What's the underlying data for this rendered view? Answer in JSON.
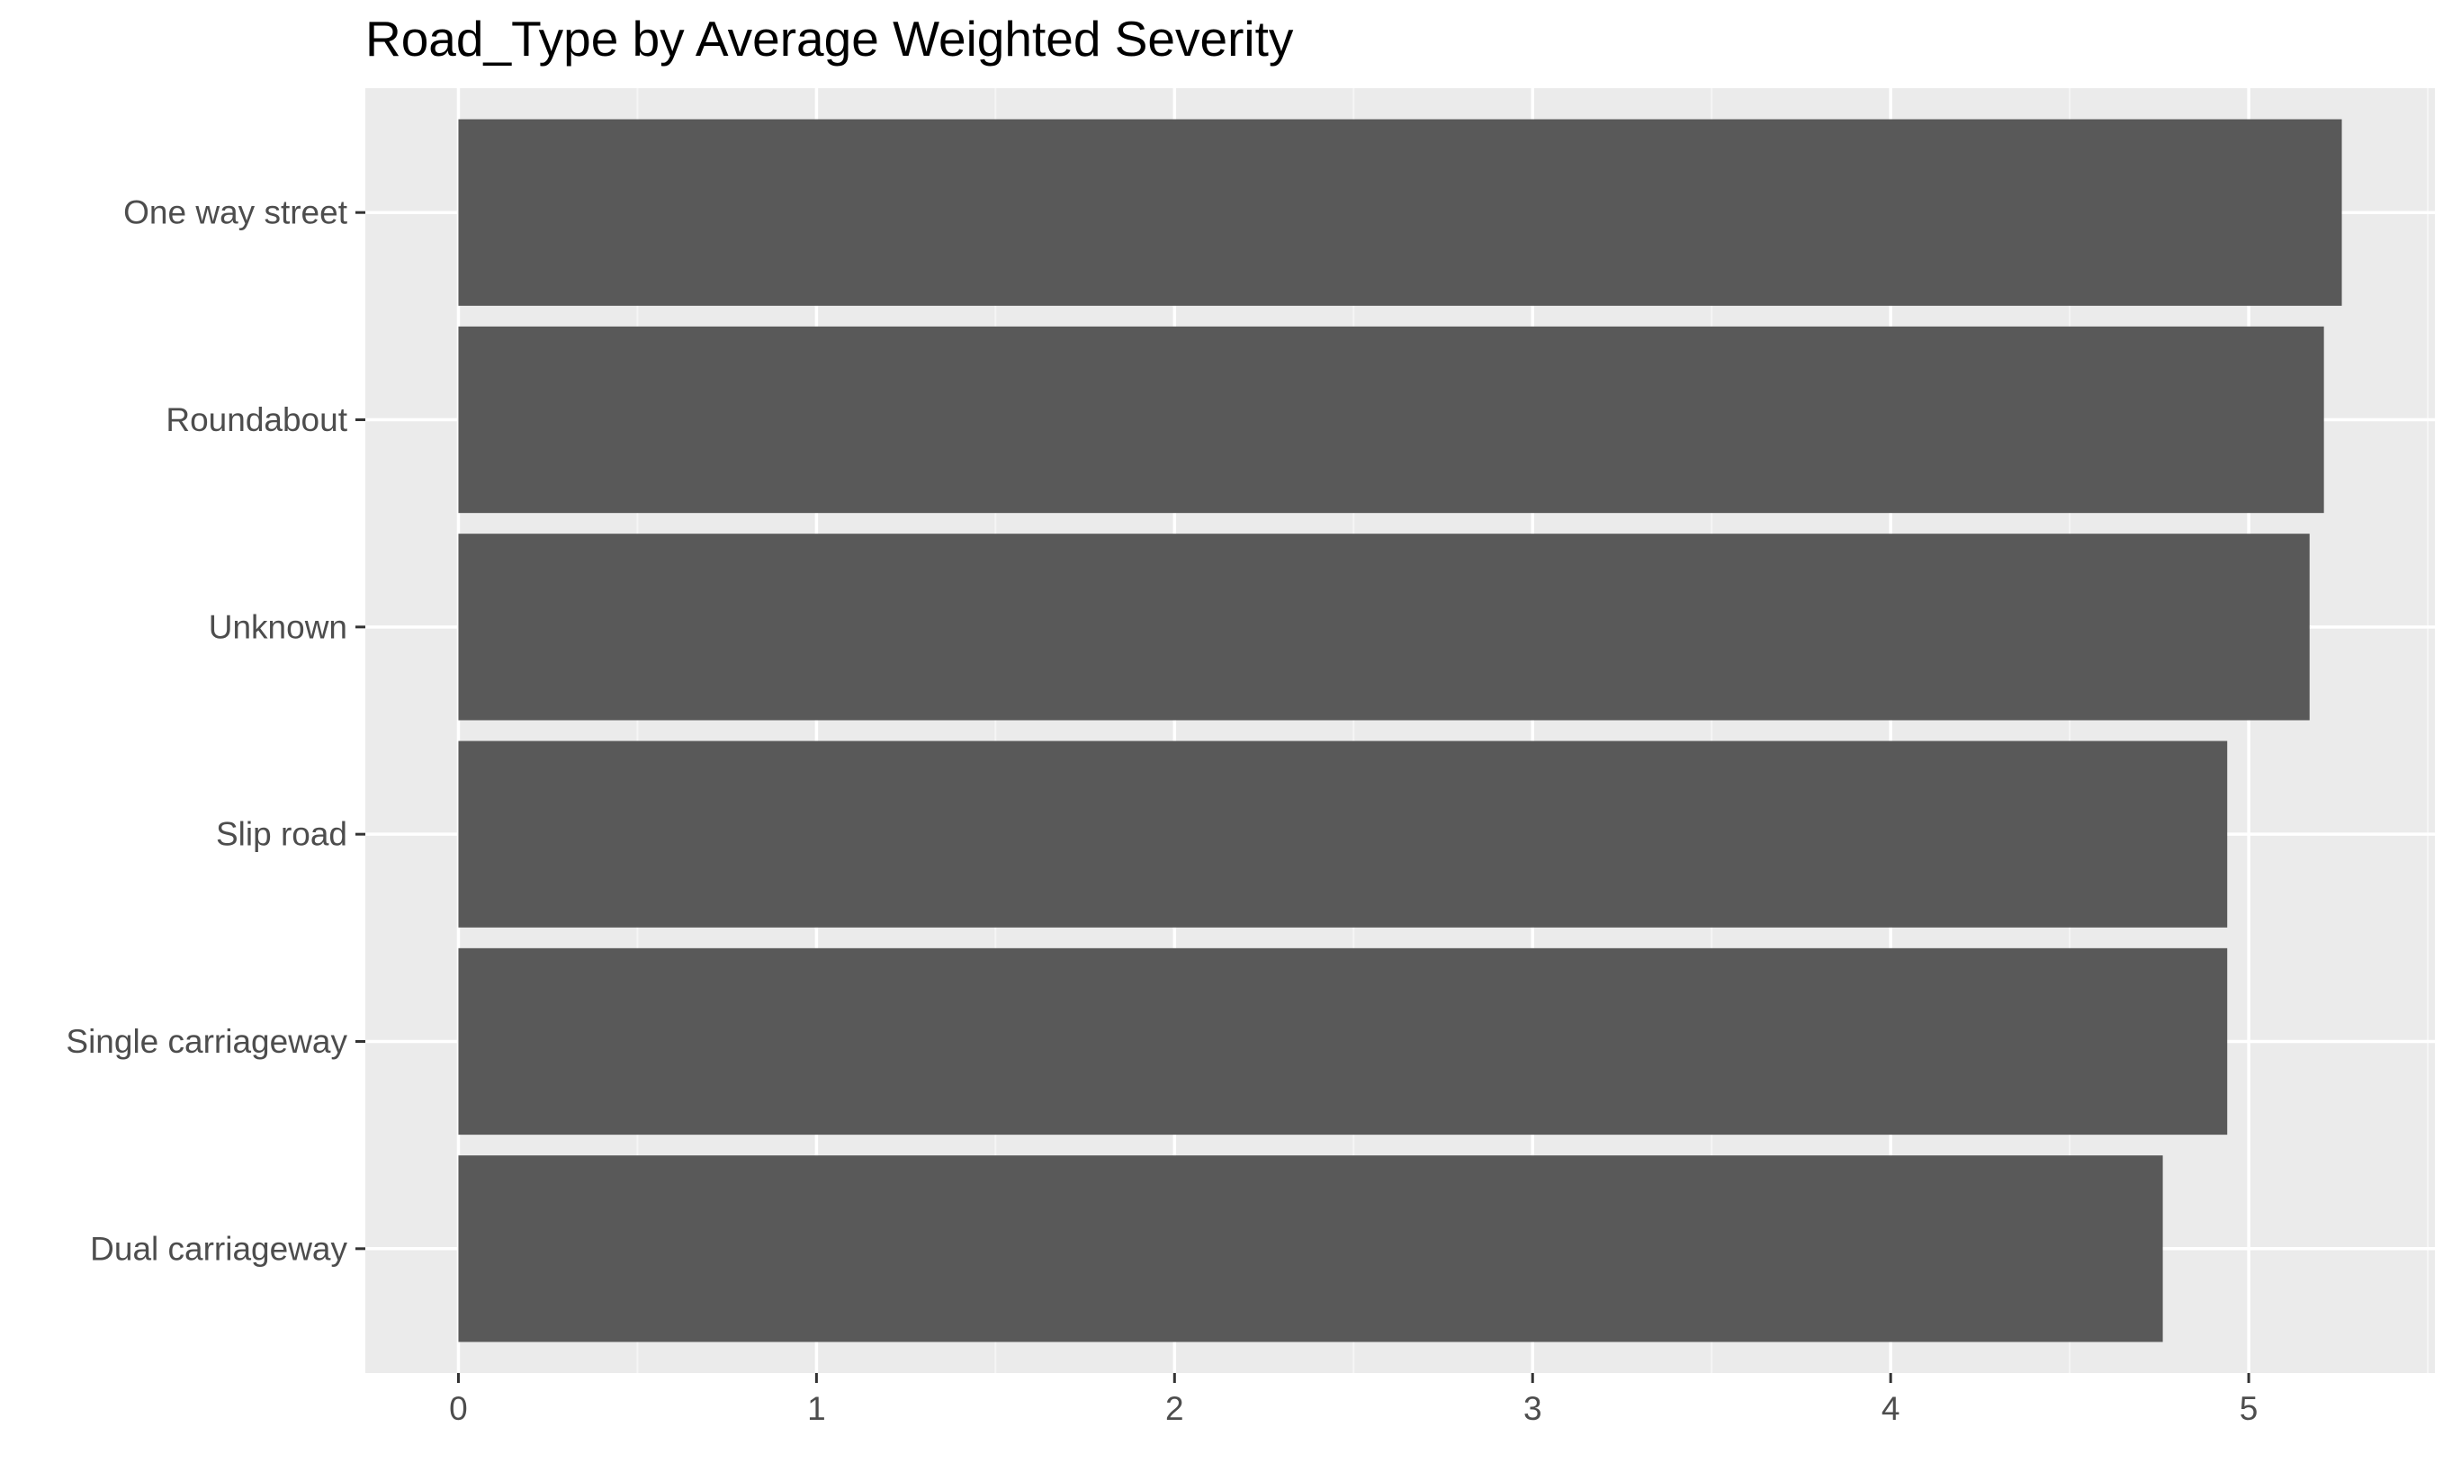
{
  "chart_data": {
    "type": "bar",
    "orientation": "horizontal",
    "title": "Road_Type by Average Weighted Severity",
    "xlabel": "",
    "ylabel": "",
    "categories": [
      "One way street",
      "Roundabout",
      "Unknown",
      "Slip road",
      "Single carriageway",
      "Dual carriageway"
    ],
    "values": [
      5.26,
      5.21,
      5.17,
      4.94,
      4.94,
      4.76
    ],
    "xlim": [
      -0.26,
      5.52
    ],
    "x_ticks": [
      0,
      1,
      2,
      3,
      4,
      5
    ],
    "grid": true,
    "legend": "none",
    "colors": {
      "bar": "#595959",
      "panel_background": "#ebebeb",
      "grid_major": "#ffffff",
      "grid_minor": "#f5f5f5",
      "axis_text": "#4d4d4d",
      "tick_mark": "#333333",
      "title": "#000000"
    }
  }
}
